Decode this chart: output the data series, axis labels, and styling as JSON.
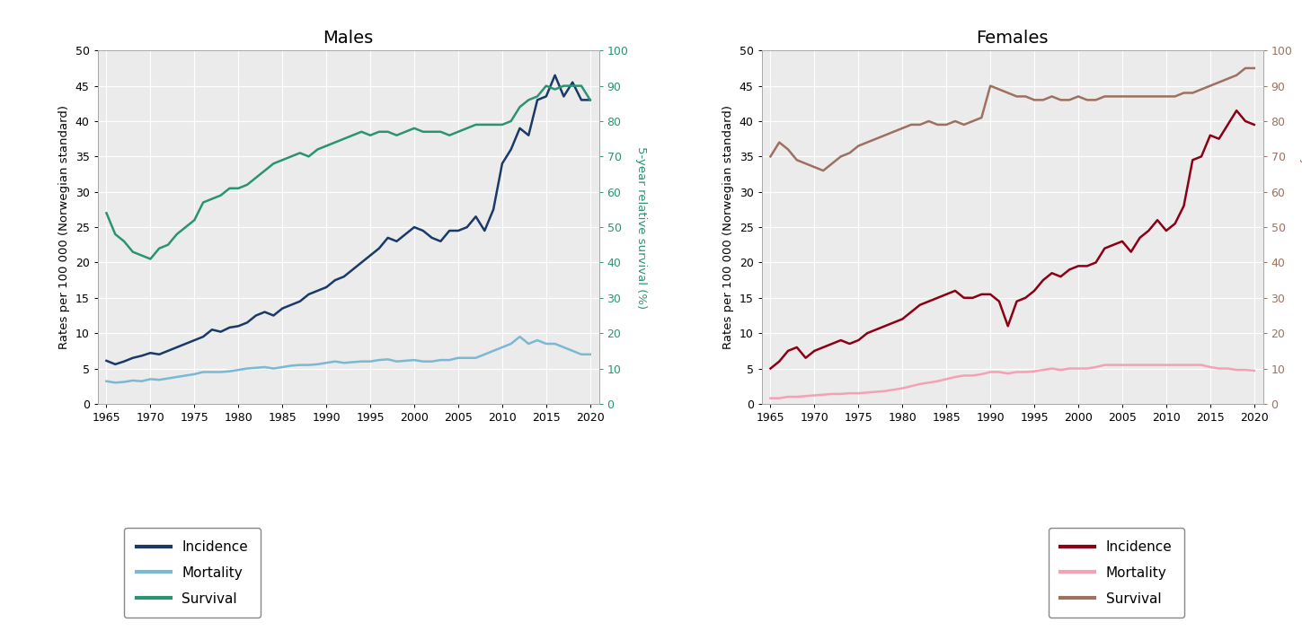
{
  "title_males": "Males",
  "title_females": "Females",
  "ylabel_left": "Rates per 100 000 (Norwegian standard)",
  "ylabel_right": "5-year relative survival (%)",
  "ylim_left": [
    0,
    50
  ],
  "ylim_right": [
    0,
    100
  ],
  "yticks_left": [
    0,
    5,
    10,
    15,
    20,
    25,
    30,
    35,
    40,
    45,
    50
  ],
  "yticks_right": [
    0,
    10,
    20,
    30,
    40,
    50,
    60,
    70,
    80,
    90,
    100
  ],
  "xticks": [
    1965,
    1970,
    1975,
    1980,
    1985,
    1990,
    1995,
    2000,
    2005,
    2010,
    2015,
    2020
  ],
  "xlim": [
    1964,
    2021
  ],
  "males_incidence_color": "#1b3968",
  "males_mortality_color": "#7ab8d4",
  "males_survival_color": "#2a9472",
  "females_incidence_color": "#8b0015",
  "females_mortality_color": "#f5a0b5",
  "females_survival_color": "#9e7060",
  "males_years": [
    1965,
    1966,
    1967,
    1968,
    1969,
    1970,
    1971,
    1972,
    1973,
    1974,
    1975,
    1976,
    1977,
    1978,
    1979,
    1980,
    1981,
    1982,
    1983,
    1984,
    1985,
    1986,
    1987,
    1988,
    1989,
    1990,
    1991,
    1992,
    1993,
    1994,
    1995,
    1996,
    1997,
    1998,
    1999,
    2000,
    2001,
    2002,
    2003,
    2004,
    2005,
    2006,
    2007,
    2008,
    2009,
    2010,
    2011,
    2012,
    2013,
    2014,
    2015,
    2016,
    2017,
    2018,
    2019,
    2020
  ],
  "males_incidence": [
    6.1,
    5.6,
    6.0,
    6.5,
    6.8,
    7.2,
    7.0,
    7.5,
    8.0,
    8.5,
    9.0,
    9.5,
    10.5,
    10.2,
    10.8,
    11.0,
    11.5,
    12.5,
    13.0,
    12.5,
    13.5,
    14.0,
    14.5,
    15.5,
    16.0,
    16.5,
    17.5,
    18.0,
    19.0,
    20.0,
    21.0,
    22.0,
    23.5,
    23.0,
    24.0,
    25.0,
    24.5,
    23.5,
    23.0,
    24.5,
    24.5,
    25.0,
    26.5,
    24.5,
    27.5,
    34.0,
    36.0,
    39.0,
    38.0,
    43.0,
    43.5,
    46.5,
    43.5,
    45.5,
    43.0,
    43.0
  ],
  "males_mortality": [
    3.2,
    3.0,
    3.1,
    3.3,
    3.2,
    3.5,
    3.4,
    3.6,
    3.8,
    4.0,
    4.2,
    4.5,
    4.5,
    4.5,
    4.6,
    4.8,
    5.0,
    5.1,
    5.2,
    5.0,
    5.2,
    5.4,
    5.5,
    5.5,
    5.6,
    5.8,
    6.0,
    5.8,
    5.9,
    6.0,
    6.0,
    6.2,
    6.3,
    6.0,
    6.1,
    6.2,
    6.0,
    6.0,
    6.2,
    6.2,
    6.5,
    6.5,
    6.5,
    7.0,
    7.5,
    8.0,
    8.5,
    9.5,
    8.5,
    9.0,
    8.5,
    8.5,
    8.0,
    7.5,
    7.0,
    7.0
  ],
  "males_survival_pct": [
    54,
    48,
    46,
    43,
    42,
    41,
    44,
    45,
    48,
    50,
    52,
    57,
    58,
    59,
    61,
    61,
    62,
    64,
    66,
    68,
    69,
    70,
    71,
    70,
    72,
    73,
    74,
    75,
    76,
    77,
    76,
    77,
    77,
    76,
    77,
    78,
    77,
    77,
    77,
    76,
    77,
    78,
    79,
    79,
    79,
    79,
    80,
    84,
    86,
    87,
    90,
    89,
    90,
    90,
    90,
    86
  ],
  "females_years": [
    1965,
    1966,
    1967,
    1968,
    1969,
    1970,
    1971,
    1972,
    1973,
    1974,
    1975,
    1976,
    1977,
    1978,
    1979,
    1980,
    1981,
    1982,
    1983,
    1984,
    1985,
    1986,
    1987,
    1988,
    1989,
    1990,
    1991,
    1992,
    1993,
    1994,
    1995,
    1996,
    1997,
    1998,
    1999,
    2000,
    2001,
    2002,
    2003,
    2004,
    2005,
    2006,
    2007,
    2008,
    2009,
    2010,
    2011,
    2012,
    2013,
    2014,
    2015,
    2016,
    2017,
    2018,
    2019,
    2020
  ],
  "females_incidence": [
    5.0,
    6.0,
    7.5,
    8.0,
    6.5,
    7.5,
    8.0,
    8.5,
    9.0,
    8.5,
    9.0,
    10.0,
    10.5,
    11.0,
    11.5,
    12.0,
    13.0,
    14.0,
    14.5,
    15.0,
    15.5,
    16.0,
    15.0,
    15.0,
    15.5,
    15.5,
    14.5,
    11.0,
    14.5,
    15.0,
    16.0,
    17.5,
    18.5,
    18.0,
    19.0,
    19.5,
    19.5,
    20.0,
    22.0,
    22.5,
    23.0,
    21.5,
    23.5,
    24.5,
    26.0,
    24.5,
    25.5,
    28.0,
    34.5,
    35.0,
    38.0,
    37.5,
    39.5,
    41.5,
    40.0,
    39.5
  ],
  "females_mortality": [
    0.8,
    0.8,
    1.0,
    1.0,
    1.1,
    1.2,
    1.3,
    1.4,
    1.4,
    1.5,
    1.5,
    1.6,
    1.7,
    1.8,
    2.0,
    2.2,
    2.5,
    2.8,
    3.0,
    3.2,
    3.5,
    3.8,
    4.0,
    4.0,
    4.2,
    4.5,
    4.5,
    4.3,
    4.5,
    4.5,
    4.6,
    4.8,
    5.0,
    4.8,
    5.0,
    5.0,
    5.0,
    5.2,
    5.5,
    5.5,
    5.5,
    5.5,
    5.5,
    5.5,
    5.5,
    5.5,
    5.5,
    5.5,
    5.5,
    5.5,
    5.2,
    5.0,
    5.0,
    4.8,
    4.8,
    4.7
  ],
  "females_survival_pct": [
    70,
    74,
    72,
    69,
    68,
    67,
    66,
    68,
    70,
    71,
    73,
    74,
    75,
    76,
    77,
    78,
    79,
    79,
    80,
    79,
    79,
    80,
    79,
    80,
    81,
    90,
    89,
    88,
    87,
    87,
    86,
    86,
    87,
    86,
    86,
    87,
    86,
    86,
    87,
    87,
    87,
    87,
    87,
    87,
    87,
    87,
    87,
    88,
    88,
    89,
    90,
    91,
    92,
    93,
    95,
    95
  ],
  "line_width": 1.8,
  "legend_fontsize": 11,
  "tick_fontsize": 9,
  "title_fontsize": 14,
  "axis_label_fontsize": 9.5,
  "bg_color": "#ebebeb"
}
